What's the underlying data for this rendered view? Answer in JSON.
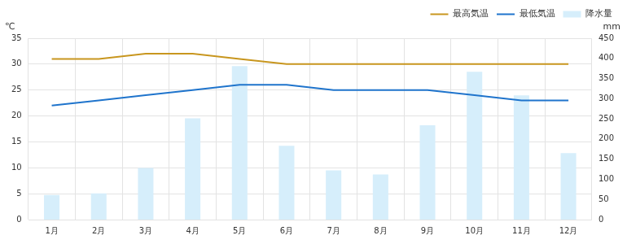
{
  "chart_data": {
    "type": "bar",
    "categories": [
      "1月",
      "2月",
      "3月",
      "4月",
      "5月",
      "6月",
      "7月",
      "8月",
      "9月",
      "10月",
      "11月",
      "12月"
    ],
    "series": [
      {
        "name": "最高気温",
        "type": "line",
        "color": "#c8961e",
        "axis": "y",
        "values": [
          31,
          31,
          32,
          32,
          31,
          30,
          30,
          30,
          30,
          30,
          30,
          30
        ]
      },
      {
        "name": "最低気温",
        "type": "line",
        "color": "#1f74cc",
        "axis": "y",
        "values": [
          22,
          23,
          24,
          25,
          26,
          26,
          25,
          25,
          25,
          24,
          23,
          23
        ]
      },
      {
        "name": "降水量",
        "type": "bar",
        "color": "#d6eefb",
        "axis": "y2",
        "values": [
          61,
          65,
          128,
          251,
          381,
          183,
          122,
          112,
          234,
          367,
          308,
          165
        ]
      }
    ],
    "y_label": "℃",
    "y2_label": "mm",
    "ylim": [
      0,
      35
    ],
    "yticks": [
      0,
      5,
      10,
      15,
      20,
      25,
      30,
      35
    ],
    "y2lim": [
      0,
      450
    ],
    "y2ticks": [
      0,
      50,
      100,
      150,
      200,
      250,
      300,
      350,
      400,
      450
    ],
    "grid": true,
    "legend": "top-right"
  }
}
